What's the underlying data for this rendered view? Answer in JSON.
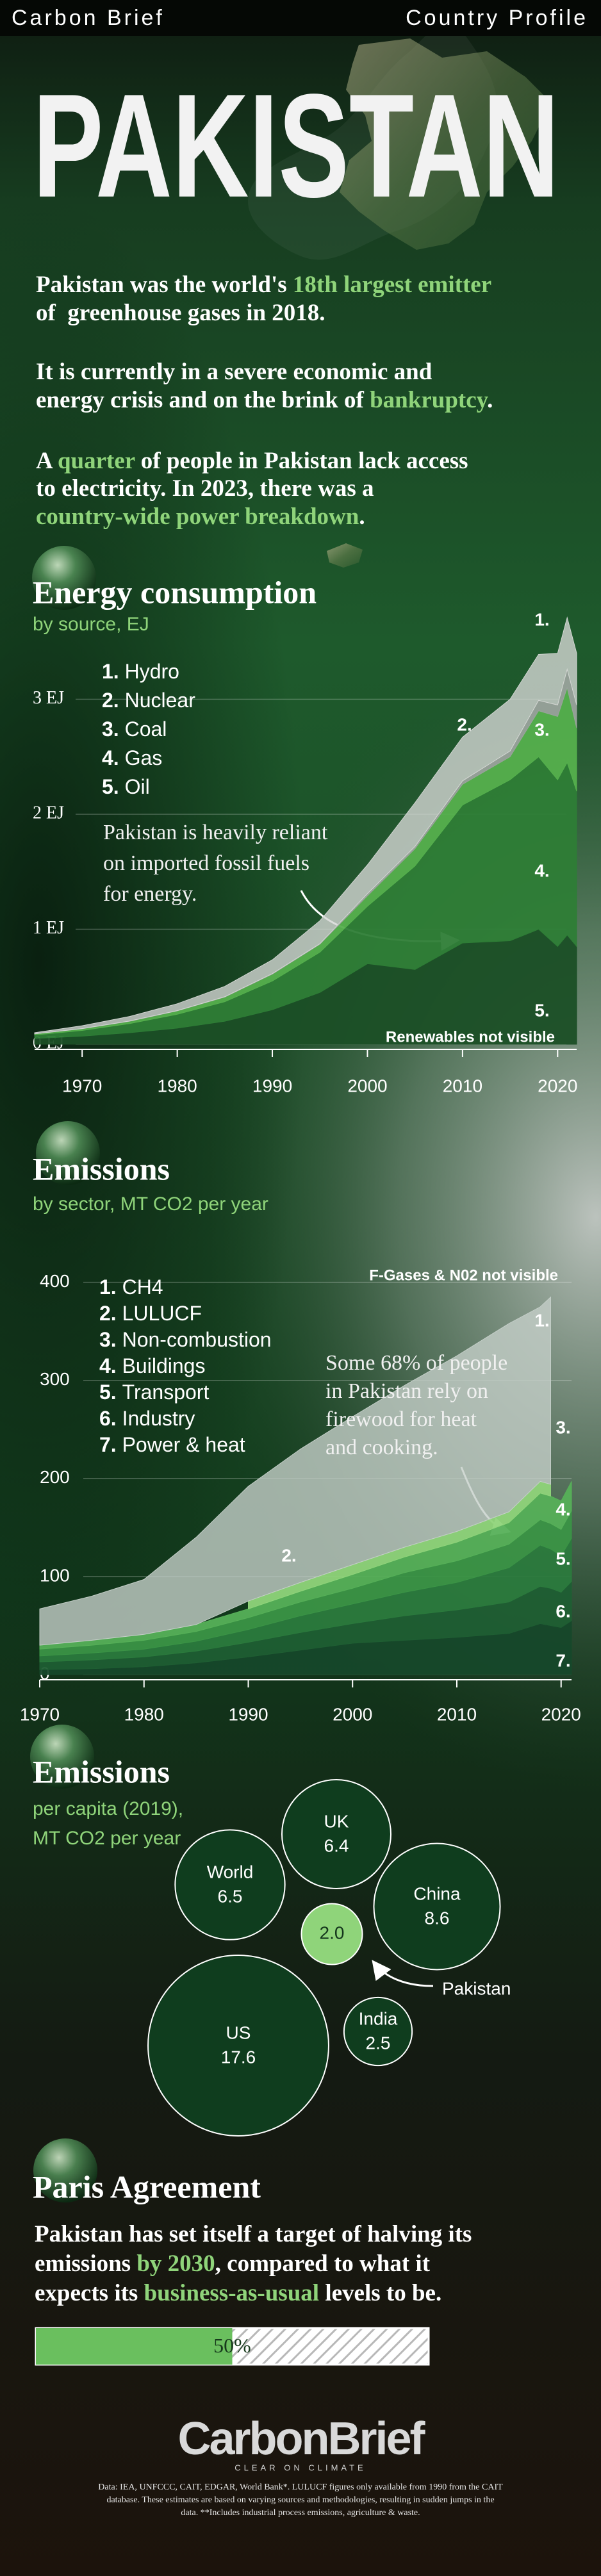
{
  "header": {
    "left": "Carbon Brief",
    "right": "Country Profile"
  },
  "title": "PAKISTAN",
  "intro": [
    [
      [
        "Pakistan was the world's ",
        "18th largest emitter"
      ],
      [
        "of  greenhouse gases in 2018."
      ]
    ],
    [
      [
        "It is currently in a severe economic and"
      ],
      [
        "energy crisis and on the brink of ",
        "bankruptcy",
        "."
      ]
    ],
    [
      [
        "A ",
        "quarter",
        " of people in Pakistan lack access"
      ],
      [
        "to electricity. In 2023, there was a"
      ],
      [
        "country-wide power breakdown",
        "."
      ]
    ]
  ],
  "chart_data": [
    {
      "type": "stacked_area",
      "title": "Energy consumption",
      "subtitle": "by source, EJ",
      "x": [
        1965,
        1970,
        1975,
        1980,
        1985,
        1990,
        1995,
        2000,
        2005,
        2010,
        2015,
        2018,
        2020,
        2021,
        2022
      ],
      "series": [
        {
          "name": "Hydro",
          "marker": "1.",
          "color": "#d3d6d3",
          "values": [
            0.01,
            0.025,
            0.04,
            0.06,
            0.09,
            0.12,
            0.2,
            0.25,
            0.38,
            0.38,
            0.45,
            0.4,
            0.45,
            0.45,
            0.45
          ]
        },
        {
          "name": "Nuclear",
          "marker": "2.",
          "color": "#9aa39c",
          "values": [
            0,
            0.001,
            0.002,
            0.002,
            0.003,
            0.004,
            0.004,
            0.02,
            0.02,
            0.03,
            0.05,
            0.09,
            0.1,
            0.16,
            0.2
          ]
        },
        {
          "name": "Coal",
          "marker": "3.",
          "color": "#55b04d",
          "values": [
            0.01,
            0.015,
            0.02,
            0.03,
            0.04,
            0.06,
            0.07,
            0.09,
            0.15,
            0.18,
            0.2,
            0.4,
            0.55,
            0.65,
            0.55
          ]
        },
        {
          "name": "Gas",
          "marker": "4.",
          "color": "#2e7d36",
          "values": [
            0.03,
            0.05,
            0.08,
            0.12,
            0.17,
            0.25,
            0.35,
            0.5,
            0.9,
            1.2,
            1.4,
            1.5,
            1.45,
            1.5,
            1.35
          ]
        },
        {
          "name": "Oil",
          "marker": "5.",
          "color": "#1b4f26",
          "values": [
            0.05,
            0.07,
            0.1,
            0.14,
            0.2,
            0.3,
            0.45,
            0.7,
            0.65,
            0.88,
            0.9,
            1.0,
            0.85,
            0.95,
            0.85
          ]
        }
      ],
      "xlim": [
        1965,
        2022
      ],
      "xticks": [
        1970,
        1980,
        1990,
        2000,
        2010,
        2020
      ],
      "ylim": [
        0,
        4
      ],
      "yticks": [
        {
          "value": 0,
          "label": "0 EJ"
        },
        {
          "value": 1,
          "label": "1 EJ"
        },
        {
          "value": 2,
          "label": "2 EJ"
        },
        {
          "value": 3,
          "label": "3 EJ"
        }
      ],
      "grid": true,
      "annotation": [
        "Pakistan is heavily reliant",
        "on imported fossil fuels",
        "for energy."
      ],
      "note": "Renewables not visible"
    },
    {
      "type": "stacked_area",
      "title": "Emissions",
      "subtitle": "by sector, MT CO2 per year",
      "x": [
        1970,
        1975,
        1980,
        1985,
        1990,
        1995,
        2000,
        2005,
        2010,
        2015,
        2018,
        2019,
        2020,
        2021
      ],
      "series": [
        {
          "name": "CH4",
          "marker": "1.",
          "color": "#c4cec8",
          "values": [
            37,
            45,
            56,
            89,
            117,
            136,
            151,
            165,
            179,
            192,
            178,
            191,
            null,
            null
          ]
        },
        {
          "name": "LULUCF",
          "marker": "2.",
          "color": "#8fd47a",
          "values": [
            null,
            null,
            null,
            null,
            8,
            9,
            10,
            10,
            11,
            11,
            12,
            12,
            null,
            null
          ]
        },
        {
          "name": "Non-combustion",
          "marker": "3.",
          "color": "#56b058",
          "values": [
            4,
            5,
            6,
            7,
            9,
            11,
            14,
            16,
            19,
            22,
            27,
            28,
            29,
            30
          ]
        },
        {
          "name": "Buildings",
          "marker": "4.",
          "color": "#3b9446",
          "values": [
            7,
            8,
            9,
            10,
            12,
            14,
            16,
            20,
            22,
            24,
            26,
            26,
            27,
            28
          ]
        },
        {
          "name": "Transport",
          "marker": "5.",
          "color": "#2b7a3d",
          "values": [
            6,
            7,
            8,
            10,
            13,
            17,
            20,
            24,
            28,
            35,
            42,
            40,
            37,
            44
          ]
        },
        {
          "name": "Industry",
          "marker": "6.",
          "color": "#1f5e33",
          "values": [
            8,
            9,
            10,
            12,
            15,
            18,
            20,
            25,
            28,
            32,
            38,
            38,
            36,
            40
          ]
        },
        {
          "name": "Power & heat",
          "marker": "7.",
          "color": "#16482a",
          "values": [
            5,
            6,
            8,
            12,
            18,
            25,
            32,
            35,
            38,
            42,
            52,
            50,
            48,
            55
          ]
        }
      ],
      "xlim": [
        1970,
        2021
      ],
      "xticks": [
        1970,
        1980,
        1990,
        2000,
        2010,
        2020
      ],
      "ylim": [
        0,
        420
      ],
      "yticks": [
        0,
        100,
        200,
        300,
        400
      ],
      "grid": true,
      "annotation": [
        "Some 68% of people",
        "in Pakistan rely on",
        "firewood for heat",
        "and cooking."
      ],
      "note": "F-Gases & N02 not visible"
    },
    {
      "type": "bubble",
      "title": "Emissions",
      "subtitle": [
        "per capita (2019),",
        "MT CO2 per year"
      ],
      "categories": [
        "UK",
        "World",
        "China",
        "Pakistan",
        "US",
        "India"
      ],
      "values": [
        6.4,
        6.5,
        8.6,
        2.0,
        17.6,
        2.5
      ],
      "value_labels": [
        "6.4",
        "6.5",
        "8.6",
        "2.0",
        "17.6",
        "2.5"
      ],
      "colors": [
        "#0f3d1e",
        "#0f3d1e",
        "#0f3d1e",
        "#8fd47a",
        "#0f3d1e",
        "#0f3d1e"
      ]
    },
    {
      "type": "progress",
      "title": "Paris Agreement",
      "text": [
        [
          "Pakistan has set itself a target of halving its"
        ],
        [
          "emissions ",
          "by 2030",
          ", compared to what it"
        ],
        [
          "expects its ",
          "business-as-usual",
          " levels to be."
        ]
      ],
      "value": 50,
      "value_label": "50%",
      "xlim": [
        0,
        100
      ],
      "color": "#6abf5e"
    }
  ],
  "footer": {
    "logo": "CarbonBrief",
    "tagline": "CLEAR ON CLIMATE",
    "notes": [
      "Data: IEA, UNFCCC, CAIT, EDGAR, World Bank*. LULUCF figures only available from 1990 from the CAIT",
      "database. These estimates are based on varying sources and methodologies, resulting in sudden jumps in the",
      "data. **Includes industrial process emissions, agriculture & waste."
    ]
  }
}
